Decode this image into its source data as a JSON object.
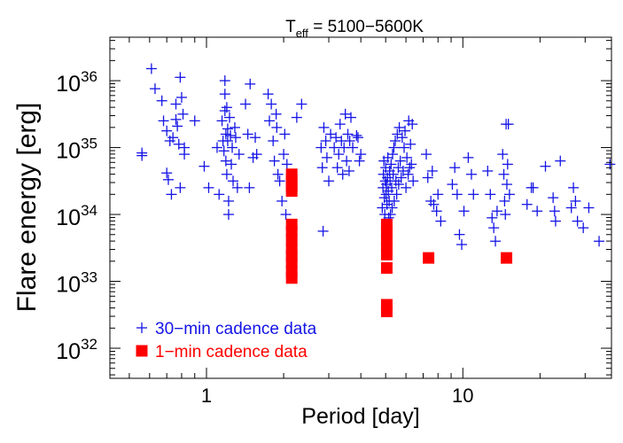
{
  "chart_data": {
    "type": "scatter",
    "title_main": "T",
    "title_sub": "eff",
    "title_rest": " = 5100−5600K",
    "xlabel": "Period [day]",
    "ylabel": "Flare energy [erg]",
    "x_scale": "log",
    "y_scale": "log",
    "xlim": [
      0.42,
      38
    ],
    "ylim_exp": [
      31.55,
      36.65
    ],
    "x_major_ticks": [
      {
        "value": 1,
        "label": "1"
      },
      {
        "value": 10,
        "label": "10"
      }
    ],
    "y_major_ticks": [
      {
        "exp": 32,
        "base": "10",
        "sup": "32"
      },
      {
        "exp": 33,
        "base": "10",
        "sup": "33"
      },
      {
        "exp": 34,
        "base": "10",
        "sup": "34"
      },
      {
        "exp": 35,
        "base": "10",
        "sup": "35"
      },
      {
        "exp": 36,
        "base": "10",
        "sup": "36"
      }
    ],
    "legend_position": "bottom-left",
    "series": [
      {
        "name": "30−min cadence data",
        "marker": "plus",
        "color": "#1414e6",
        "points": [
          [
            0.56,
            34.92
          ],
          [
            0.56,
            34.88
          ],
          [
            0.61,
            36.18
          ],
          [
            0.63,
            35.88
          ],
          [
            0.67,
            35.7
          ],
          [
            0.68,
            35.4
          ],
          [
            0.7,
            35.25
          ],
          [
            0.7,
            34.62
          ],
          [
            0.71,
            34.52
          ],
          [
            0.72,
            35.1
          ],
          [
            0.73,
            34.3
          ],
          [
            0.74,
            35.15
          ],
          [
            0.76,
            35.65
          ],
          [
            0.76,
            35.42
          ],
          [
            0.77,
            35.32
          ],
          [
            0.78,
            35.05
          ],
          [
            0.79,
            36.05
          ],
          [
            0.79,
            34.4
          ],
          [
            0.8,
            35.75
          ],
          [
            0.81,
            35.5
          ],
          [
            0.82,
            35.0
          ],
          [
            0.82,
            34.9
          ],
          [
            0.9,
            35.4
          ],
          [
            0.98,
            34.72
          ],
          [
            1.02,
            34.4
          ],
          [
            1.1,
            35.0
          ],
          [
            1.12,
            34.3
          ],
          [
            1.15,
            35.4
          ],
          [
            1.16,
            35.1
          ],
          [
            1.17,
            34.95
          ],
          [
            1.18,
            36.0
          ],
          [
            1.18,
            35.8
          ],
          [
            1.18,
            35.55
          ],
          [
            1.19,
            35.2
          ],
          [
            1.19,
            34.8
          ],
          [
            1.2,
            35.6
          ],
          [
            1.2,
            34.6
          ],
          [
            1.21,
            35.28
          ],
          [
            1.21,
            35.1
          ],
          [
            1.22,
            34.2
          ],
          [
            1.22,
            34.0
          ],
          [
            1.23,
            35.45
          ],
          [
            1.24,
            35.18
          ],
          [
            1.25,
            34.75
          ],
          [
            1.26,
            35.0
          ],
          [
            1.27,
            34.5
          ],
          [
            1.29,
            35.3
          ],
          [
            1.3,
            35.15
          ],
          [
            1.32,
            34.4
          ],
          [
            1.34,
            34.9
          ],
          [
            1.42,
            35.65
          ],
          [
            1.45,
            35.2
          ],
          [
            1.47,
            34.4
          ],
          [
            1.48,
            35.95
          ],
          [
            1.52,
            34.85
          ],
          [
            1.55,
            35.15
          ],
          [
            1.57,
            34.9
          ],
          [
            1.74,
            35.8
          ],
          [
            1.76,
            35.4
          ],
          [
            1.79,
            35.65
          ],
          [
            1.82,
            35.1
          ],
          [
            1.84,
            34.8
          ],
          [
            1.87,
            35.5
          ],
          [
            1.88,
            35.3
          ],
          [
            1.9,
            34.6
          ],
          [
            1.93,
            34.5
          ],
          [
            1.97,
            34.2
          ],
          [
            2.0,
            34.9
          ],
          [
            2.02,
            35.2
          ],
          [
            2.04,
            34.0
          ],
          [
            2.06,
            34.75
          ],
          [
            2.25,
            35.45
          ],
          [
            2.35,
            35.65
          ],
          [
            2.85,
            33.75
          ],
          [
            2.8,
            35.0
          ],
          [
            2.83,
            34.7
          ],
          [
            2.87,
            35.3
          ],
          [
            2.92,
            35.1
          ],
          [
            2.95,
            34.85
          ],
          [
            3.0,
            34.5
          ],
          [
            3.05,
            35.2
          ],
          [
            3.15,
            35.0
          ],
          [
            3.2,
            35.15
          ],
          [
            3.24,
            34.7
          ],
          [
            3.28,
            34.9
          ],
          [
            3.32,
            35.35
          ],
          [
            3.36,
            35.1
          ],
          [
            3.4,
            34.6
          ],
          [
            3.44,
            35.0
          ],
          [
            3.48,
            35.5
          ],
          [
            3.52,
            34.8
          ],
          [
            3.56,
            35.2
          ],
          [
            3.6,
            34.65
          ],
          [
            3.62,
            35.1
          ],
          [
            3.66,
            35.45
          ],
          [
            3.72,
            35.0
          ],
          [
            3.85,
            35.18
          ],
          [
            3.9,
            35.15
          ],
          [
            3.95,
            34.8
          ],
          [
            4.0,
            34.9
          ],
          [
            4.85,
            34.1
          ],
          [
            4.88,
            34.4
          ],
          [
            4.9,
            34.6
          ],
          [
            4.92,
            34.8
          ],
          [
            4.94,
            34.25
          ],
          [
            4.96,
            34.0
          ],
          [
            4.98,
            34.5
          ],
          [
            5.0,
            34.7
          ],
          [
            5.02,
            34.3
          ],
          [
            5.04,
            34.45
          ],
          [
            5.06,
            34.15
          ],
          [
            5.08,
            34.55
          ],
          [
            5.1,
            34.85
          ],
          [
            5.12,
            34.35
          ],
          [
            5.14,
            33.95
          ],
          [
            5.16,
            34.2
          ],
          [
            5.18,
            34.65
          ],
          [
            5.2,
            34.5
          ],
          [
            5.22,
            34.0
          ],
          [
            5.25,
            34.75
          ],
          [
            5.28,
            34.4
          ],
          [
            5.3,
            34.1
          ],
          [
            5.32,
            34.9
          ],
          [
            5.35,
            34.6
          ],
          [
            5.38,
            35.0
          ],
          [
            5.4,
            34.2
          ],
          [
            5.45,
            35.1
          ],
          [
            5.48,
            34.5
          ],
          [
            5.52,
            34.3
          ],
          [
            5.55,
            35.2
          ],
          [
            5.6,
            34.7
          ],
          [
            5.62,
            34.45
          ],
          [
            5.65,
            35.3
          ],
          [
            5.7,
            34.8
          ],
          [
            5.75,
            34.55
          ],
          [
            5.8,
            35.15
          ],
          [
            5.85,
            34.65
          ],
          [
            5.9,
            35.0
          ],
          [
            5.95,
            35.25
          ],
          [
            6.0,
            34.4
          ],
          [
            6.05,
            34.85
          ],
          [
            6.12,
            34.6
          ],
          [
            6.15,
            35.4
          ],
          [
            6.2,
            34.7
          ],
          [
            6.25,
            35.05
          ],
          [
            6.3,
            34.75
          ],
          [
            6.35,
            35.35
          ],
          [
            6.4,
            34.5
          ],
          [
            7.2,
            34.9
          ],
          [
            7.3,
            34.55
          ],
          [
            7.5,
            34.2
          ],
          [
            7.6,
            34.65
          ],
          [
            7.7,
            34.15
          ],
          [
            7.9,
            34.05
          ],
          [
            8.0,
            34.3
          ],
          [
            8.2,
            33.9
          ],
          [
            9.1,
            34.45
          ],
          [
            9.3,
            34.7
          ],
          [
            9.5,
            34.3
          ],
          [
            9.7,
            33.7
          ],
          [
            9.9,
            33.55
          ],
          [
            10.1,
            34.05
          ],
          [
            10.5,
            34.85
          ],
          [
            10.8,
            34.6
          ],
          [
            11.0,
            34.3
          ],
          [
            12.5,
            34.65
          ],
          [
            12.8,
            34.3
          ],
          [
            13.0,
            33.95
          ],
          [
            13.2,
            33.8
          ],
          [
            13.4,
            33.6
          ],
          [
            13.6,
            34.05
          ],
          [
            14.3,
            34.9
          ],
          [
            14.45,
            34.6
          ],
          [
            14.55,
            34.2
          ],
          [
            14.65,
            34.0
          ],
          [
            14.75,
            35.35
          ],
          [
            14.85,
            34.45
          ],
          [
            14.95,
            34.75
          ],
          [
            15.05,
            35.35
          ],
          [
            15.2,
            34.3
          ],
          [
            17.8,
            34.15
          ],
          [
            18.5,
            34.4
          ],
          [
            18.8,
            34.4
          ],
          [
            19.5,
            34.05
          ],
          [
            21.0,
            34.72
          ],
          [
            22.5,
            34.25
          ],
          [
            22.8,
            34.05
          ],
          [
            23.0,
            33.9
          ],
          [
            24.0,
            34.8
          ],
          [
            26.5,
            34.1
          ],
          [
            27.0,
            34.4
          ],
          [
            27.5,
            34.2
          ],
          [
            28.0,
            33.9
          ],
          [
            29.5,
            33.8
          ],
          [
            31.0,
            34.1
          ],
          [
            34.0,
            33.6
          ],
          [
            37.5,
            34.75
          ]
        ]
      },
      {
        "name": "1−min cadence data",
        "marker": "square",
        "color": "#ff0000",
        "points": [
          [
            2.15,
            34.6
          ],
          [
            2.15,
            34.52
          ],
          [
            2.15,
            34.42
          ],
          [
            2.15,
            34.35
          ],
          [
            2.15,
            33.85
          ],
          [
            2.15,
            33.75
          ],
          [
            2.15,
            33.62
          ],
          [
            2.15,
            33.48
          ],
          [
            2.15,
            33.38
          ],
          [
            2.15,
            33.28
          ],
          [
            2.15,
            33.15
          ],
          [
            2.15,
            33.05
          ],
          [
            5.05,
            33.85
          ],
          [
            5.05,
            33.75
          ],
          [
            5.05,
            33.62
          ],
          [
            5.05,
            33.52
          ],
          [
            5.05,
            33.4
          ],
          [
            5.05,
            33.2
          ],
          [
            5.05,
            32.65
          ],
          [
            5.05,
            32.55
          ],
          [
            7.35,
            33.35
          ],
          [
            14.8,
            33.35
          ]
        ]
      }
    ]
  }
}
